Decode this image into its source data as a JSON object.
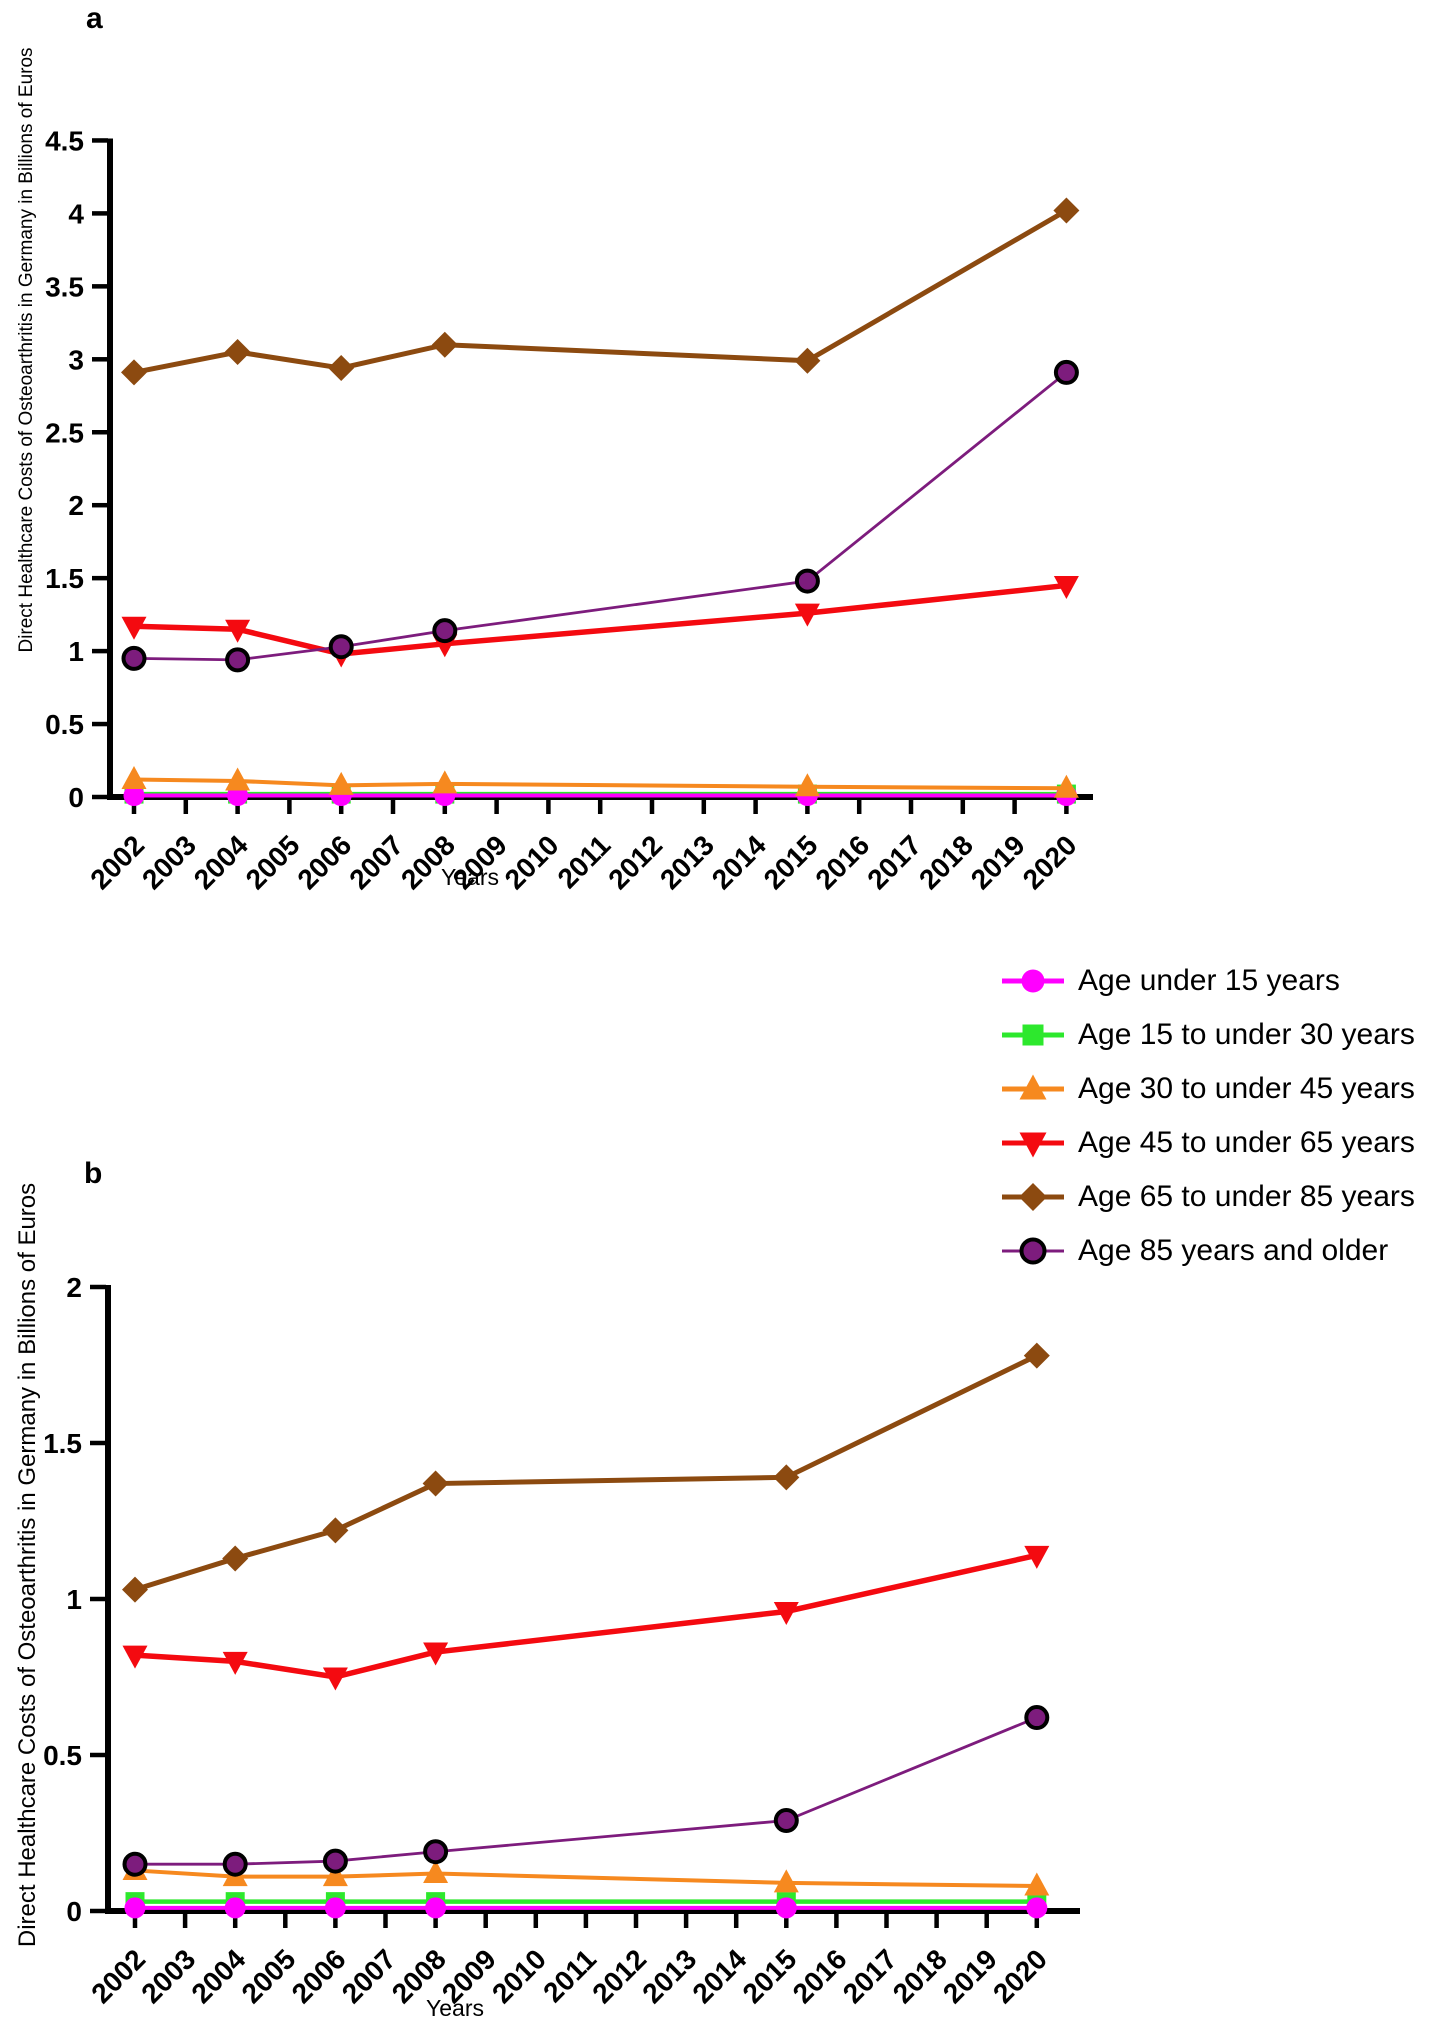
{
  "figure": {
    "x_axis_title": "Years",
    "y_axis_title": "Direct Healthcare Costs of Osteoarthritis in Germany in Billions of Euros",
    "panels": [
      {
        "letter": "a"
      },
      {
        "letter": "b"
      }
    ]
  },
  "legend": {
    "items": [
      {
        "label": "Age under 15 years",
        "color": "#FF00FF",
        "marker": "circle"
      },
      {
        "label": "Age 15 to under 30 years",
        "color": "#2DE82D",
        "marker": "square"
      },
      {
        "label": "Age 30 to under 45 years",
        "color": "#F6891F",
        "marker": "triangle-up"
      },
      {
        "label": "Age 45 to under 65 years",
        "color": "#F40A10",
        "marker": "triangle-down"
      },
      {
        "label": "Age 65 to under 85 years",
        "color": "#8C4A10",
        "marker": "diamond"
      },
      {
        "label": "Age 85 years and older",
        "color": "#7D1C7D",
        "marker": "circle-outlined"
      }
    ]
  },
  "chart_data": [
    {
      "type": "line",
      "panel": "a",
      "title": "",
      "xlabel": "Years",
      "ylabel": "Direct Healthcare Costs of Osteoarthritis in Germany in Billions of Euros",
      "ylim": [
        0,
        4.5
      ],
      "y_ticks": [
        0,
        0.5,
        1,
        1.5,
        2,
        2.5,
        3,
        3.5,
        4,
        4.5
      ],
      "x_ticks": [
        2002,
        2003,
        2004,
        2005,
        2006,
        2007,
        2008,
        2009,
        2010,
        2011,
        2012,
        2013,
        2014,
        2015,
        2016,
        2017,
        2018,
        2019,
        2020
      ],
      "x": [
        2002,
        2004,
        2006,
        2008,
        2015,
        2020
      ],
      "grid": false,
      "series": [
        {
          "name": "Age under 15 years",
          "values": [
            0.01,
            0.01,
            0.01,
            0.01,
            0.01,
            0.01
          ]
        },
        {
          "name": "Age 15 to under 30 years",
          "values": [
            0.02,
            0.02,
            0.02,
            0.02,
            0.02,
            0.02
          ]
        },
        {
          "name": "Age 30 to under 45 years",
          "values": [
            0.12,
            0.11,
            0.08,
            0.09,
            0.07,
            0.06
          ]
        },
        {
          "name": "Age 45 to under 65 years",
          "values": [
            1.17,
            1.15,
            0.98,
            1.05,
            1.26,
            1.45
          ]
        },
        {
          "name": "Age 65 to under 85 years",
          "values": [
            2.91,
            3.05,
            2.94,
            3.1,
            2.99,
            4.02
          ]
        },
        {
          "name": "Age 85 years and older",
          "values": [
            0.95,
            0.94,
            1.03,
            1.14,
            1.48,
            2.91
          ]
        }
      ]
    },
    {
      "type": "line",
      "panel": "b",
      "title": "",
      "xlabel": "Years",
      "ylabel": "Direct Healthcare Costs of Osteoarthritis in Germany in Billions of Euros",
      "ylim": [
        0,
        2
      ],
      "y_ticks": [
        0,
        0.5,
        1,
        1.5,
        2
      ],
      "x_ticks": [
        2002,
        2003,
        2004,
        2005,
        2006,
        2007,
        2008,
        2009,
        2010,
        2011,
        2012,
        2013,
        2014,
        2015,
        2016,
        2017,
        2018,
        2019,
        2020
      ],
      "x": [
        2002,
        2004,
        2006,
        2008,
        2015,
        2020
      ],
      "grid": false,
      "series": [
        {
          "name": "Age under 15 years",
          "values": [
            0.01,
            0.01,
            0.01,
            0.01,
            0.01,
            0.01
          ]
        },
        {
          "name": "Age 15 to under 30 years",
          "values": [
            0.03,
            0.03,
            0.03,
            0.03,
            0.03,
            0.03
          ]
        },
        {
          "name": "Age 30 to under 45 years",
          "values": [
            0.13,
            0.11,
            0.11,
            0.12,
            0.09,
            0.08
          ]
        },
        {
          "name": "Age 45 to under 65 years",
          "values": [
            0.82,
            0.8,
            0.75,
            0.83,
            0.96,
            1.14
          ]
        },
        {
          "name": "Age 65 to under 85 years",
          "values": [
            1.03,
            1.13,
            1.22,
            1.37,
            1.39,
            1.78
          ]
        },
        {
          "name": "Age 85 years and older",
          "values": [
            0.15,
            0.15,
            0.16,
            0.19,
            0.29,
            0.62
          ]
        }
      ]
    }
  ]
}
